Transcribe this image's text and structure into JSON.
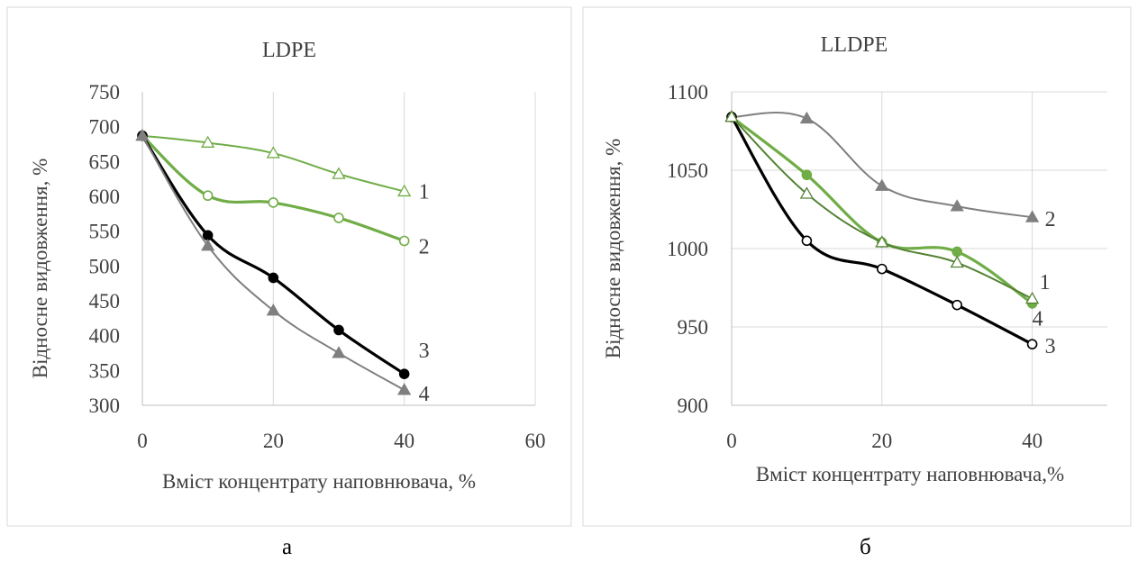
{
  "charts": [
    {
      "caption": "а",
      "chart_data": {
        "type": "line",
        "title": "LDPE",
        "xlabel": "Вміст концентрату наповнювача, %",
        "ylabel": "Відносне видовження, %",
        "xlim": [
          0,
          60
        ],
        "ylim": [
          300,
          750
        ],
        "xticks": [
          0,
          20,
          40,
          60
        ],
        "yticks": [
          300,
          350,
          400,
          450,
          500,
          550,
          600,
          650,
          700,
          750
        ],
        "grid": "vertical",
        "series": [
          {
            "name": "1",
            "color": "#70ad47",
            "marker": "open-triangle",
            "thick": false,
            "x": [
              0,
              10,
              20,
              30,
              40
            ],
            "y": [
              687,
              677,
              662,
              632,
              607
            ]
          },
          {
            "name": "2",
            "color": "#70ad47",
            "marker": "open-circle",
            "thick": true,
            "x": [
              0,
              10,
              20,
              30,
              40
            ],
            "y": [
              687,
              601,
              591,
              569,
              536
            ]
          },
          {
            "name": "3",
            "color": "#000000",
            "marker": "filled-circle",
            "thick": true,
            "x": [
              0,
              10,
              20,
              30,
              40
            ],
            "y": [
              687,
              544,
              483,
              408,
              345
            ]
          },
          {
            "name": "4",
            "color": "#7f7f7f",
            "marker": "filled-triangle",
            "thick": false,
            "x": [
              0,
              10,
              20,
              30,
              40
            ],
            "y": [
              687,
              529,
              436,
              375,
              322
            ]
          }
        ]
      }
    },
    {
      "caption": "б",
      "chart_data": {
        "type": "line",
        "title": "LLDPE",
        "xlabel": "Вміст концентрату наповнювача,%",
        "ylabel": "Відносне видовження, %",
        "xlim": [
          0,
          50
        ],
        "ylim": [
          900,
          1100
        ],
        "xticks": [
          0,
          20,
          40
        ],
        "yticks": [
          900,
          950,
          1000,
          1050,
          1100
        ],
        "grid": "both",
        "series": [
          {
            "name": "1",
            "color": "#70ad47",
            "marker": "filled-circle",
            "thick": true,
            "x": [
              0,
              10,
              20,
              30,
              40
            ],
            "y": [
              1084,
              1047,
              1004,
              998,
              965
            ]
          },
          {
            "name": "2",
            "color": "#7f7f7f",
            "marker": "filled-triangle",
            "thick": false,
            "x": [
              0,
              10,
              20,
              30,
              40
            ],
            "y": [
              1084,
              1083,
              1040,
              1027,
              1020
            ]
          },
          {
            "name": "3",
            "color": "#000000",
            "marker": "open-circle",
            "thick": true,
            "x": [
              0,
              10,
              20,
              30,
              40
            ],
            "y": [
              1084,
              1005,
              987,
              964,
              939
            ]
          },
          {
            "name": "4",
            "color": "#548235",
            "marker": "open-triangle",
            "thick": false,
            "x": [
              0,
              10,
              20,
              30,
              40
            ],
            "y": [
              1084,
              1035,
              1004,
              991,
              968
            ]
          }
        ]
      }
    }
  ]
}
